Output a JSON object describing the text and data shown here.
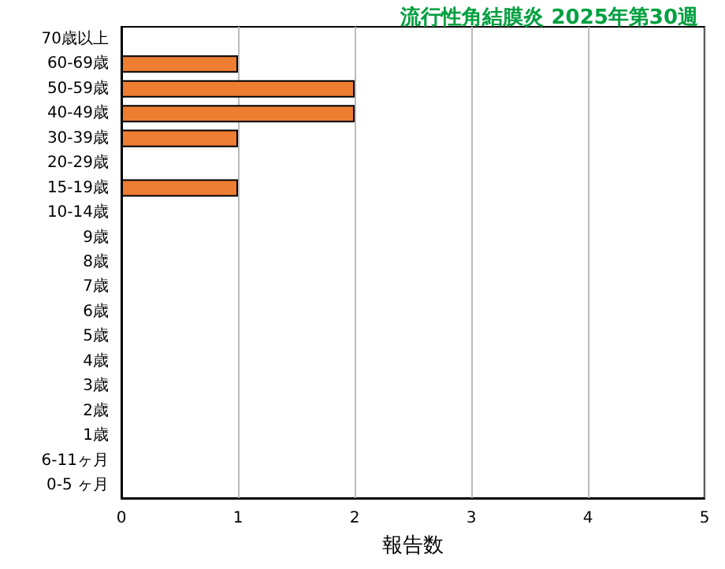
{
  "chart_data": {
    "type": "bar",
    "orientation": "horizontal",
    "title": "流行性角結膜炎 2025年第30週",
    "xlabel": "報告数",
    "categories": [
      "70歳以上",
      "60-69歳",
      "50-59歳",
      "40-49歳",
      "30-39歳",
      "20-29歳",
      "15-19歳",
      "10-14歳",
      "9歳",
      "8歳",
      "7歳",
      "6歳",
      "5歳",
      "4歳",
      "3歳",
      "2歳",
      "1歳",
      "6-11ヶ月",
      "0-5 ヶ月"
    ],
    "values": [
      0,
      1,
      2,
      2,
      1,
      0,
      1,
      0,
      0,
      0,
      0,
      0,
      0,
      0,
      0,
      0,
      0,
      0,
      0
    ],
    "color": "#ed7d31",
    "xlim": [
      0,
      5
    ],
    "xticks": [
      0,
      1,
      2,
      3,
      4,
      5
    ],
    "grid": "x"
  }
}
